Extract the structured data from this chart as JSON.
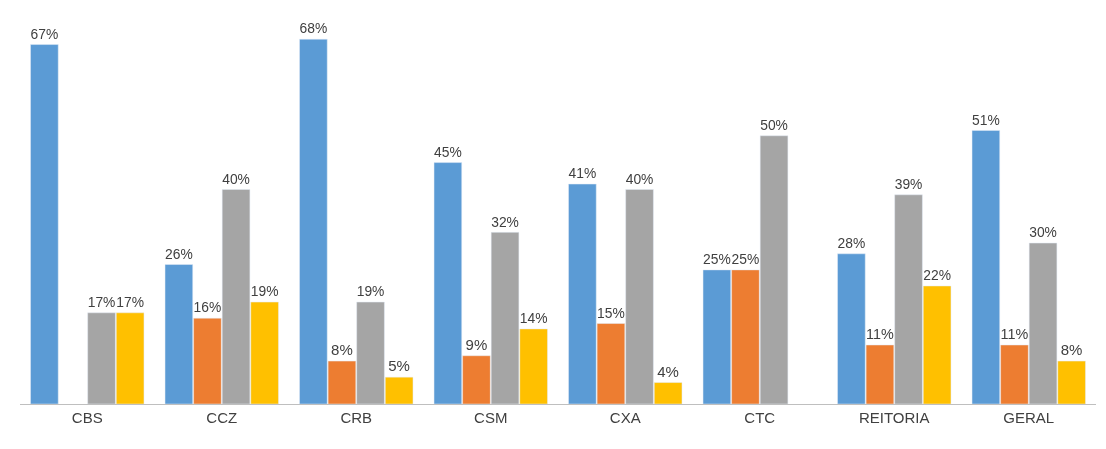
{
  "chart_data": {
    "type": "bar",
    "categories": [
      "CBS",
      "CCZ",
      "CRB",
      "CSM",
      "CXA",
      "CTC",
      "REITORIA",
      "GERAL"
    ],
    "series": [
      {
        "color": "#5b9bd5",
        "values": [
          67,
          26,
          68,
          45,
          41,
          25,
          28,
          51
        ],
        "value_labels": [
          "67%",
          "26%",
          "68%",
          "45%",
          "41%",
          "25%",
          "28%",
          "51%"
        ]
      },
      {
        "color": "#ed7d31",
        "values": [
          null,
          16,
          8,
          9,
          15,
          25,
          11,
          11
        ],
        "value_labels": [
          null,
          "16%",
          "8%",
          "9%",
          "15%",
          "25%",
          "11%",
          "11%"
        ]
      },
      {
        "color": "#a5a5a5",
        "values": [
          17,
          40,
          19,
          32,
          40,
          50,
          39,
          30
        ],
        "value_labels": [
          "17%",
          "40%",
          "19%",
          "32%",
          "40%",
          "50%",
          "39%",
          "30%"
        ]
      },
      {
        "color": "#ffc000",
        "values": [
          17,
          19,
          5,
          14,
          4,
          null,
          22,
          8
        ],
        "value_labels": [
          "17%",
          "19%",
          "5%",
          "14%",
          "4%",
          null,
          "22%",
          "8%"
        ]
      }
    ],
    "tick_labels": "x"
  }
}
